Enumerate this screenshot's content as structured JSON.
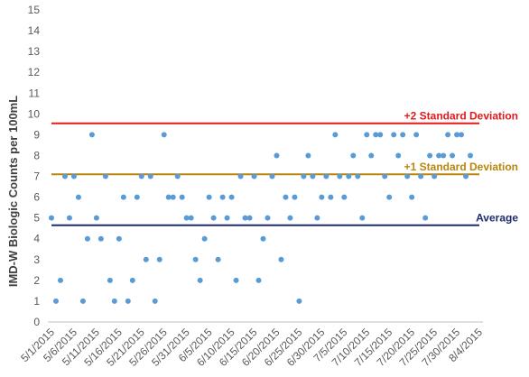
{
  "chart_data": {
    "type": "scatter",
    "ylabel": "IMD-W Biologic Counts per 100mL",
    "xlabel": "",
    "ylim": [
      0,
      15
    ],
    "yticks": [
      "0",
      "1",
      "2",
      "3",
      "4",
      "5",
      "6",
      "7",
      "8",
      "9",
      "10",
      "11",
      "12",
      "13",
      "14",
      "15"
    ],
    "xlim": [
      "2015-05-01",
      "2015-08-04"
    ],
    "xticks": [
      "5/1/2015",
      "5/6/2015",
      "5/11/2015",
      "5/16/2015",
      "5/21/2015",
      "5/26/2015",
      "5/31/2015",
      "6/5/2015",
      "6/10/2015",
      "6/15/2015",
      "6/20/2015",
      "6/25/2015",
      "6/30/2015",
      "7/5/2015",
      "7/10/2015",
      "7/15/2015",
      "7/20/2015",
      "7/25/2015",
      "7/30/2015",
      "8/4/2015"
    ],
    "grid": false,
    "point_color": "#5b9bd5",
    "points": [
      {
        "x": "2015-05-01",
        "y": 5
      },
      {
        "x": "2015-05-02",
        "y": 1
      },
      {
        "x": "2015-05-03",
        "y": 2
      },
      {
        "x": "2015-05-04",
        "y": 7
      },
      {
        "x": "2015-05-05",
        "y": 5
      },
      {
        "x": "2015-05-06",
        "y": 7
      },
      {
        "x": "2015-05-07",
        "y": 6
      },
      {
        "x": "2015-05-08",
        "y": 1
      },
      {
        "x": "2015-05-09",
        "y": 4
      },
      {
        "x": "2015-05-10",
        "y": 9
      },
      {
        "x": "2015-05-11",
        "y": 5
      },
      {
        "x": "2015-05-12",
        "y": 4
      },
      {
        "x": "2015-05-13",
        "y": 7
      },
      {
        "x": "2015-05-14",
        "y": 2
      },
      {
        "x": "2015-05-15",
        "y": 1
      },
      {
        "x": "2015-05-16",
        "y": 4
      },
      {
        "x": "2015-05-17",
        "y": 6
      },
      {
        "x": "2015-05-18",
        "y": 1
      },
      {
        "x": "2015-05-19",
        "y": 2
      },
      {
        "x": "2015-05-20",
        "y": 6
      },
      {
        "x": "2015-05-21",
        "y": 7
      },
      {
        "x": "2015-05-22",
        "y": 3
      },
      {
        "x": "2015-05-23",
        "y": 7
      },
      {
        "x": "2015-05-24",
        "y": 1
      },
      {
        "x": "2015-05-25",
        "y": 3
      },
      {
        "x": "2015-05-26",
        "y": 9
      },
      {
        "x": "2015-05-27",
        "y": 6
      },
      {
        "x": "2015-05-28",
        "y": 6
      },
      {
        "x": "2015-05-29",
        "y": 7
      },
      {
        "x": "2015-05-30",
        "y": 6
      },
      {
        "x": "2015-05-31",
        "y": 5
      },
      {
        "x": "2015-06-01",
        "y": 5
      },
      {
        "x": "2015-06-02",
        "y": 3
      },
      {
        "x": "2015-06-03",
        "y": 2
      },
      {
        "x": "2015-06-04",
        "y": 4
      },
      {
        "x": "2015-06-05",
        "y": 6
      },
      {
        "x": "2015-06-06",
        "y": 5
      },
      {
        "x": "2015-06-07",
        "y": 3
      },
      {
        "x": "2015-06-08",
        "y": 6
      },
      {
        "x": "2015-06-09",
        "y": 5
      },
      {
        "x": "2015-06-10",
        "y": 6
      },
      {
        "x": "2015-06-11",
        "y": 2
      },
      {
        "x": "2015-06-12",
        "y": 7
      },
      {
        "x": "2015-06-13",
        "y": 5
      },
      {
        "x": "2015-06-14",
        "y": 5
      },
      {
        "x": "2015-06-15",
        "y": 7
      },
      {
        "x": "2015-06-16",
        "y": 2
      },
      {
        "x": "2015-06-17",
        "y": 4
      },
      {
        "x": "2015-06-18",
        "y": 5
      },
      {
        "x": "2015-06-19",
        "y": 7
      },
      {
        "x": "2015-06-20",
        "y": 8
      },
      {
        "x": "2015-06-21",
        "y": 3
      },
      {
        "x": "2015-06-22",
        "y": 6
      },
      {
        "x": "2015-06-23",
        "y": 5
      },
      {
        "x": "2015-06-24",
        "y": 6
      },
      {
        "x": "2015-06-25",
        "y": 1
      },
      {
        "x": "2015-06-26",
        "y": 7
      },
      {
        "x": "2015-06-27",
        "y": 8
      },
      {
        "x": "2015-06-28",
        "y": 7
      },
      {
        "x": "2015-06-29",
        "y": 5
      },
      {
        "x": "2015-06-30",
        "y": 6
      },
      {
        "x": "2015-07-01",
        "y": 7
      },
      {
        "x": "2015-07-02",
        "y": 6
      },
      {
        "x": "2015-07-03",
        "y": 9
      },
      {
        "x": "2015-07-04",
        "y": 7
      },
      {
        "x": "2015-07-05",
        "y": 6
      },
      {
        "x": "2015-07-06",
        "y": 7
      },
      {
        "x": "2015-07-07",
        "y": 8
      },
      {
        "x": "2015-07-08",
        "y": 7
      },
      {
        "x": "2015-07-09",
        "y": 5
      },
      {
        "x": "2015-07-10",
        "y": 9
      },
      {
        "x": "2015-07-11",
        "y": 8
      },
      {
        "x": "2015-07-12",
        "y": 9
      },
      {
        "x": "2015-07-13",
        "y": 9
      },
      {
        "x": "2015-07-14",
        "y": 7
      },
      {
        "x": "2015-07-15",
        "y": 6
      },
      {
        "x": "2015-07-16",
        "y": 9
      },
      {
        "x": "2015-07-17",
        "y": 8
      },
      {
        "x": "2015-07-18",
        "y": 9
      },
      {
        "x": "2015-07-19",
        "y": 7
      },
      {
        "x": "2015-07-20",
        "y": 6
      },
      {
        "x": "2015-07-21",
        "y": 9
      },
      {
        "x": "2015-07-22",
        "y": 7
      },
      {
        "x": "2015-07-23",
        "y": 5
      },
      {
        "x": "2015-07-24",
        "y": 8
      },
      {
        "x": "2015-07-25",
        "y": 7
      },
      {
        "x": "2015-07-26",
        "y": 8
      },
      {
        "x": "2015-07-27",
        "y": 8
      },
      {
        "x": "2015-07-28",
        "y": 9
      },
      {
        "x": "2015-07-29",
        "y": 8
      },
      {
        "x": "2015-07-30",
        "y": 9
      },
      {
        "x": "2015-07-31",
        "y": 9
      },
      {
        "x": "2015-08-01",
        "y": 7
      },
      {
        "x": "2015-08-02",
        "y": 8
      }
    ],
    "reference_lines": [
      {
        "label": "+2 Standard Deviation",
        "value": 9.55,
        "color": "#e31a1c"
      },
      {
        "label": "+1 Standard Deviation",
        "value": 7.1,
        "color": "#b8860b"
      },
      {
        "label": "Average",
        "value": 4.65,
        "color": "#1f2d6e"
      }
    ]
  }
}
